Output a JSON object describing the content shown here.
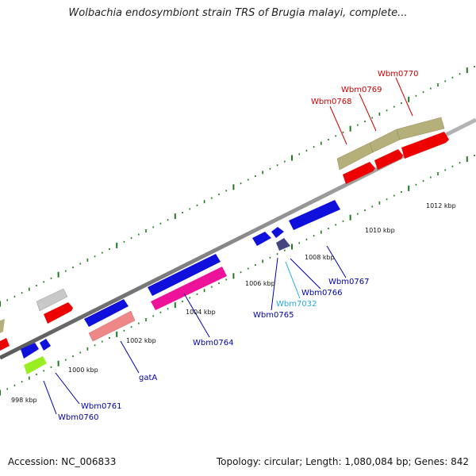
{
  "title": "Wolbachia endosymbiont strain TRS of Brugia malayi, complete...",
  "footer": {
    "accession": "Accession: NC_006833",
    "stats": "Topology: circular; Length: 1,080,084 bp; Genes: 842"
  },
  "colors": {
    "backbone": "#8c8c8c",
    "tick_marks": "#1f7a1f",
    "label_red": "#cc0000",
    "label_blue": "#0000aa",
    "label_cyan": "#22aadd"
  },
  "tick_labels": [
    "998 kbp",
    "1000 kbp",
    "1002 kbp",
    "1004 kbp",
    "1006 kbp",
    "1008 kbp",
    "1010 kbp",
    "1012 kbp"
  ],
  "gene_labels": [
    {
      "name": "Wbm0760",
      "color": "#0000aa"
    },
    {
      "name": "Wbm0761",
      "color": "#0000aa"
    },
    {
      "name": "gatA",
      "color": "#0000aa"
    },
    {
      "name": "Wbm0764",
      "color": "#0000aa"
    },
    {
      "name": "Wbm0765",
      "color": "#0000aa"
    },
    {
      "name": "Wbm7032",
      "color": "#22aadd"
    },
    {
      "name": "Wbm0766",
      "color": "#0000aa"
    },
    {
      "name": "Wbm0767",
      "color": "#0000aa"
    },
    {
      "name": "Wbm0768",
      "color": "#cc0000"
    },
    {
      "name": "Wbm0769",
      "color": "#cc0000"
    },
    {
      "name": "Wbm0770",
      "color": "#cc0000"
    }
  ]
}
